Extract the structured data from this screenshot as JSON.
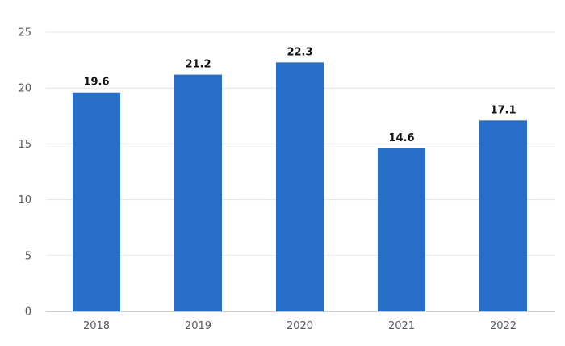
{
  "chart_data": {
    "type": "bar",
    "categories": [
      "2018",
      "2019",
      "2020",
      "2021",
      "2022"
    ],
    "values": [
      19.6,
      21.2,
      22.3,
      14.6,
      17.1
    ],
    "data_labels": [
      "19.6",
      "21.2",
      "22.3",
      "14.6",
      "17.1"
    ],
    "title": "",
    "xlabel": "",
    "ylabel": "",
    "ylim": [
      0,
      25
    ],
    "yticks": [
      "0",
      "5",
      "10",
      "15",
      "20",
      "25"
    ],
    "grid": true,
    "legend": "none",
    "bar_color": "#266ec8"
  }
}
